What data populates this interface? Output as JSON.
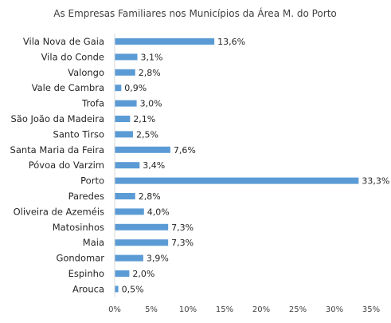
{
  "chart_data": {
    "type": "bar",
    "orientation": "horizontal",
    "title": "As Empresas Familiares nos Municípios da Área M. do Porto",
    "xlabel": "",
    "ylabel": "",
    "categories": [
      "Vila Nova de Gaia",
      "Vila do Conde",
      "Valongo",
      "Vale de Cambra",
      "Trofa",
      "São João da Madeira",
      "Santo Tirso",
      "Santa Maria da Feira",
      "Póvoa do Varzim",
      "Porto",
      "Paredes",
      "Oliveira de Azeméis",
      "Matosinhos",
      "Maia",
      "Gondomar",
      "Espinho",
      "Arouca"
    ],
    "values": [
      13.6,
      3.1,
      2.8,
      0.9,
      3.0,
      2.1,
      2.5,
      7.6,
      3.4,
      33.3,
      2.8,
      4.0,
      7.3,
      7.3,
      3.9,
      2.0,
      0.5
    ],
    "value_labels": [
      "13,6%",
      "3,1%",
      "2,8%",
      "0,9%",
      "3,0%",
      "2,1%",
      "2,5%",
      "7,6%",
      "3,4%",
      "33,3%",
      "2,8%",
      "4,0%",
      "7,3%",
      "7,3%",
      "3,9%",
      "2,0%",
      "0,5%"
    ],
    "xlim": [
      0,
      35
    ],
    "x_ticks": [
      0,
      5,
      10,
      15,
      20,
      25,
      30,
      35
    ],
    "x_tick_labels": [
      "0%",
      "5%",
      "10%",
      "15%",
      "20%",
      "25%",
      "30%",
      "35%"
    ],
    "grid": false,
    "legend": "none",
    "colors": {
      "bar": "#5b9bd5",
      "text": "#262626"
    }
  }
}
